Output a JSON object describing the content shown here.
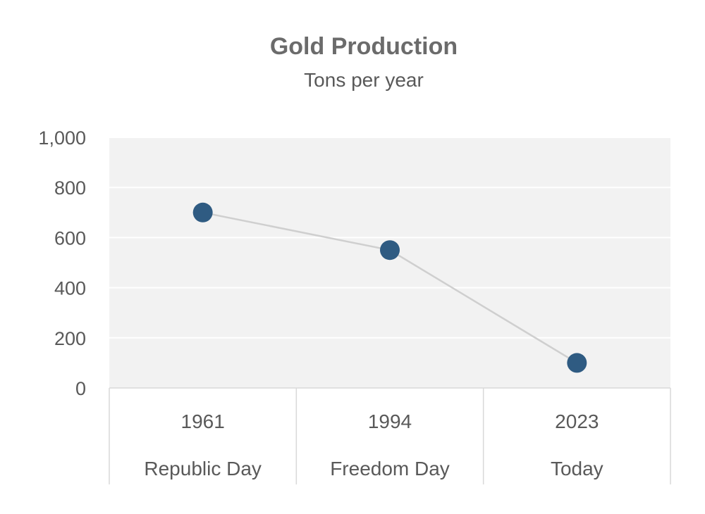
{
  "chart_data": {
    "type": "line",
    "title": "Gold Production",
    "subtitle": "Tons per year",
    "categories": [
      {
        "year": "1961",
        "label": "Republic Day"
      },
      {
        "year": "1994",
        "label": "Freedom Day"
      },
      {
        "year": "2023",
        "label": "Today"
      }
    ],
    "values": [
      700,
      550,
      100
    ],
    "ylim": [
      0,
      1000
    ],
    "yticks": [
      0,
      200,
      400,
      600,
      800,
      1000
    ],
    "ytick_labels": [
      "0",
      "200",
      "400",
      "600",
      "800",
      "1,000"
    ],
    "grid": true,
    "legend": "none"
  },
  "colors": {
    "marker": "#2f5b82",
    "line": "#cfcfcf",
    "plot_bg": "#f2f2f2",
    "grid": "#ffffff",
    "text": "#595959",
    "title": "#6b6b6b",
    "table_border": "#d9d9d9"
  }
}
